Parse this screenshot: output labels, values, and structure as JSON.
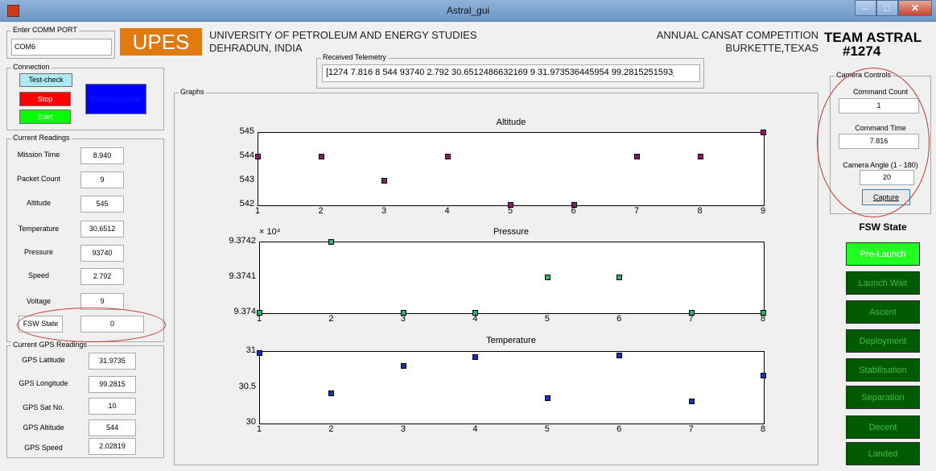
{
  "window": {
    "title": "Astral_gui",
    "min": "–",
    "max": "□",
    "close": "✕"
  },
  "comm": {
    "legend": "Enter COMM PORT",
    "port": "COM6"
  },
  "header": {
    "logo": "UPES",
    "univ_line1": "UNIVERSITY OF PETROLEUM AND ENERGY STUDIES",
    "univ_line2": "DEHRADUN, INDIA",
    "comp_line1": "ANNUAL CANSAT COMPETITION",
    "comp_line2": "BURKETTE,TEXAS",
    "team_line1": "TEAM ASTRAL",
    "team_line2": "#1274"
  },
  "telemetry": {
    "legend": "Received Telemetry",
    "value": "[1274 7.816 8 544 93740 2.792 30.6512486632169 9 31.973536445954 99.2815251593̹"
  },
  "connection": {
    "legend": "Connection",
    "test_check": "Test-check",
    "stop": "Stop",
    "start": "Start",
    "blue_button": "Communication"
  },
  "readings": {
    "legend": "Current Readings",
    "items": [
      {
        "label": "Mission Time",
        "value": "8.940"
      },
      {
        "label": "Packet Count",
        "value": "9"
      },
      {
        "label": "Altitude",
        "value": "545"
      },
      {
        "label": "Temperature",
        "value": "30.6512"
      },
      {
        "label": "Pressure",
        "value": "93740"
      },
      {
        "label": "Speed",
        "value": "2.792"
      },
      {
        "label": "Voltage",
        "value": "9"
      },
      {
        "label": "FSW State",
        "value": "0"
      }
    ]
  },
  "gps": {
    "legend": "Current GPS Readings",
    "items": [
      {
        "label": "GPS Latitude",
        "value": "31.9735"
      },
      {
        "label": "GPS Longitude",
        "value": "99.2815"
      },
      {
        "label": "GPS Sat No.",
        "value": "10"
      },
      {
        "label": "GPS Altitude",
        "value": "544"
      },
      {
        "label": "GPS Speed",
        "value": "2.02819"
      }
    ]
  },
  "graphs": {
    "legend": "Graphs"
  },
  "camera": {
    "legend": "Camera Controls",
    "count_label": "Command Count",
    "count_value": "1",
    "time_label": "Command Time",
    "time_value": "7.816",
    "angle_label": "Camera Angle (1 - 180)",
    "angle_value": "20",
    "capture": "Capture"
  },
  "fsw": {
    "title": "FSW State",
    "states": [
      "Pre-Launch",
      "Launch Wait",
      "Ascent",
      "Deployment",
      "Stabilisation",
      "Separation",
      "Decent",
      "Landed"
    ],
    "active_index": 0,
    "colors": {
      "active": "#22ff22",
      "inactive": "#005a00",
      "inactive_text": "#3fbf3f"
    }
  },
  "chart_data": [
    {
      "type": "scatter",
      "title": "Altitude",
      "x": [
        1,
        2,
        3,
        4,
        5,
        6,
        7,
        8,
        9
      ],
      "y": [
        544,
        544,
        543,
        544,
        542,
        542,
        544,
        544,
        545
      ],
      "xlim": [
        1,
        9
      ],
      "ylim": [
        542,
        545
      ],
      "xticks": [
        "1",
        "2",
        "3",
        "4",
        "5",
        "6",
        "7",
        "8",
        "9"
      ],
      "yticks": [
        "545",
        "544",
        "543",
        "542"
      ],
      "multiplier": "",
      "color": "#8b1a6b"
    },
    {
      "type": "scatter",
      "title": "Pressure",
      "x": [
        1,
        2,
        3,
        4,
        5,
        6,
        7,
        8
      ],
      "y": [
        93740,
        93742,
        93740,
        93740,
        93741,
        93741,
        93740,
        93740
      ],
      "xlim": [
        1,
        8
      ],
      "ylim": [
        93740,
        93742
      ],
      "xticks": [
        "1",
        "2",
        "3",
        "4",
        "5",
        "6",
        "7",
        "8"
      ],
      "yticks": [
        "9.3742",
        "9.3741",
        "9.374"
      ],
      "multiplier": "× 10⁴",
      "color": "#2fb36b"
    },
    {
      "type": "scatter",
      "title": "Temperature",
      "x": [
        1,
        2,
        3,
        4,
        5,
        6,
        7,
        8
      ],
      "y": [
        30.98,
        30.42,
        30.8,
        30.92,
        30.35,
        30.94,
        30.3,
        30.66
      ],
      "xlim": [
        1,
        8
      ],
      "ylim": [
        30,
        31
      ],
      "xticks": [
        "1",
        "2",
        "3",
        "4",
        "5",
        "6",
        "7",
        "8"
      ],
      "yticks": [
        "31",
        "30.5",
        "30"
      ],
      "multiplier": "",
      "color": "#1a2fbf"
    }
  ]
}
